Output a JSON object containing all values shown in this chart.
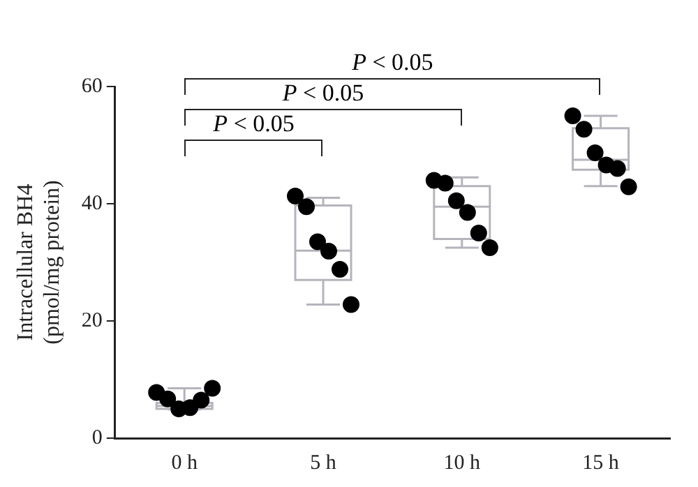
{
  "chart_data": {
    "type": "box",
    "ylabel": "Intracellular BH4\n(pmol/mg protein)",
    "categories": [
      "0 h",
      "5 h",
      "10 h",
      "15 h"
    ],
    "ylim": [
      0,
      60
    ],
    "yticks": [
      0,
      20,
      40,
      60
    ],
    "grid": false,
    "legend": false,
    "color": "#b4b4bc",
    "boxes": [
      {
        "low": 4.9,
        "q1": 5.0,
        "median": 5.5,
        "q3": 6.0,
        "high": 8.5
      },
      {
        "low": 22.8,
        "q1": 27,
        "median": 32,
        "q3": 39.7,
        "high": 41
      },
      {
        "low": 32.5,
        "q1": 34,
        "median": 39.5,
        "q3": 43,
        "high": 44.5
      },
      {
        "low": 43,
        "q1": 45.8,
        "median": 47.5,
        "q3": 52.9,
        "high": 55
      }
    ],
    "series": [
      {
        "type": "scatter",
        "color": "#000000",
        "marker": "circle",
        "x": [
          "0 h",
          "0 h",
          "0 h",
          "0 h",
          "0 h",
          "0 h",
          "5 h",
          "5 h",
          "5 h",
          "5 h",
          "5 h",
          "5 h",
          "10 h",
          "10 h",
          "10 h",
          "10 h",
          "10 h",
          "10 h",
          "15 h",
          "15 h",
          "15 h",
          "15 h",
          "15 h",
          "15 h"
        ],
        "values": [
          7.8,
          6.7,
          5.0,
          5.2,
          6.5,
          8.5,
          41.3,
          39.5,
          33.5,
          31.9,
          28.8,
          22.8,
          44,
          43.5,
          40.5,
          38.5,
          35,
          32.5,
          55,
          52.7,
          48.7,
          46.6,
          46,
          42.9
        ]
      }
    ],
    "annotations": [
      "P < 0.05",
      "P < 0.05",
      "P < 0.05"
    ]
  }
}
